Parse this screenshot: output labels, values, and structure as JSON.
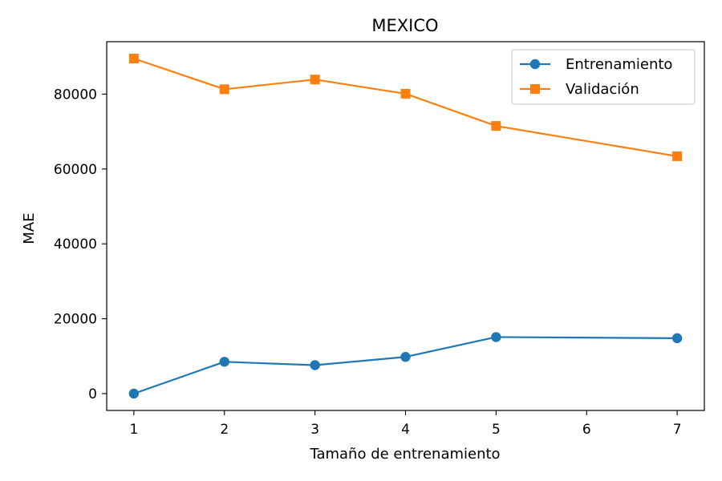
{
  "chart_data": {
    "type": "line",
    "title": "MEXICO",
    "xlabel": "Tamaño de entrenamiento",
    "ylabel": "MAE",
    "x": [
      1,
      2,
      3,
      4,
      5,
      7
    ],
    "xticks": [
      1,
      2,
      3,
      4,
      5,
      6,
      7
    ],
    "yticks": [
      0,
      20000,
      40000,
      60000,
      80000
    ],
    "xlim": [
      0.7,
      7.3
    ],
    "ylim": [
      -4500,
      94000
    ],
    "grid": false,
    "legend_position": "top-right",
    "series": [
      {
        "name": "Entrenamiento",
        "color": "#1f77b4",
        "marker": "circle",
        "values": [
          0,
          8500,
          7600,
          9800,
          15100,
          14800
        ]
      },
      {
        "name": "Validación",
        "color": "#ff7f0e",
        "marker": "square",
        "values": [
          89500,
          81300,
          83900,
          80100,
          71500,
          63400
        ]
      }
    ]
  }
}
